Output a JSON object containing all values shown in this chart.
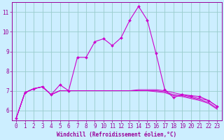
{
  "xlabel": "Windchill (Refroidissement éolien,°C)",
  "xlim": [
    -0.5,
    23.5
  ],
  "ylim": [
    5.5,
    11.5
  ],
  "yticks": [
    6,
    7,
    8,
    9,
    10,
    11
  ],
  "xticks": [
    0,
    1,
    2,
    3,
    4,
    5,
    6,
    7,
    8,
    9,
    10,
    11,
    12,
    13,
    14,
    15,
    16,
    17,
    18,
    19,
    20,
    21,
    22,
    23
  ],
  "bg_color": "#cceeff",
  "line_color": "#cc00cc",
  "grid_color": "#99cccc",
  "lines": [
    [
      5.6,
      6.9,
      7.1,
      7.2,
      6.8,
      7.3,
      7.0,
      8.7,
      8.7,
      9.5,
      9.65,
      9.3,
      9.7,
      10.6,
      11.3,
      10.6,
      8.9,
      7.05,
      6.65,
      6.8,
      6.75,
      6.7,
      6.5,
      6.2
    ],
    [
      5.6,
      6.9,
      7.1,
      7.2,
      6.8,
      7.0,
      7.0,
      7.0,
      7.0,
      7.0,
      7.0,
      7.0,
      7.0,
      7.0,
      7.05,
      7.05,
      7.05,
      7.0,
      6.9,
      6.8,
      6.7,
      6.6,
      6.5,
      6.2
    ],
    [
      5.6,
      6.9,
      7.1,
      7.2,
      6.8,
      7.0,
      7.0,
      7.0,
      7.0,
      7.0,
      7.0,
      7.0,
      7.0,
      7.0,
      7.0,
      7.0,
      7.0,
      6.95,
      6.8,
      6.75,
      6.65,
      6.55,
      6.4,
      6.1
    ],
    [
      5.6,
      6.9,
      7.1,
      7.2,
      6.8,
      7.0,
      7.0,
      7.0,
      7.0,
      7.0,
      7.0,
      7.0,
      7.0,
      7.0,
      7.0,
      7.0,
      6.95,
      6.9,
      6.75,
      6.7,
      6.6,
      6.5,
      6.35,
      6.05
    ]
  ],
  "tick_fontsize": 5.5,
  "xlabel_fontsize": 5.5,
  "tick_color": "#990099",
  "spine_color": "#990099"
}
